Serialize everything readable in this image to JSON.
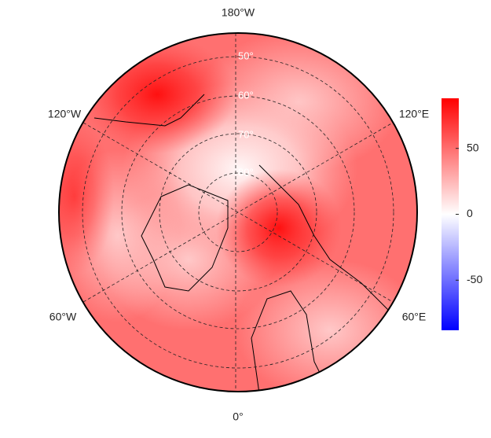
{
  "map": {
    "longitude_labels": {
      "top": "180°W",
      "upper_left": "120°W",
      "upper_right": "120°E",
      "lower_left": "60°W",
      "lower_right": "60°E",
      "bottom": "0°"
    },
    "latitude_labels": [
      "80°",
      "70°",
      "60°",
      "50°"
    ],
    "colorbar": {
      "colormap": [
        "#0000ff",
        "#ffffff",
        "#ff0000"
      ],
      "lim": [
        -88,
        88
      ],
      "ticks": [
        -50,
        0,
        50
      ]
    }
  }
}
